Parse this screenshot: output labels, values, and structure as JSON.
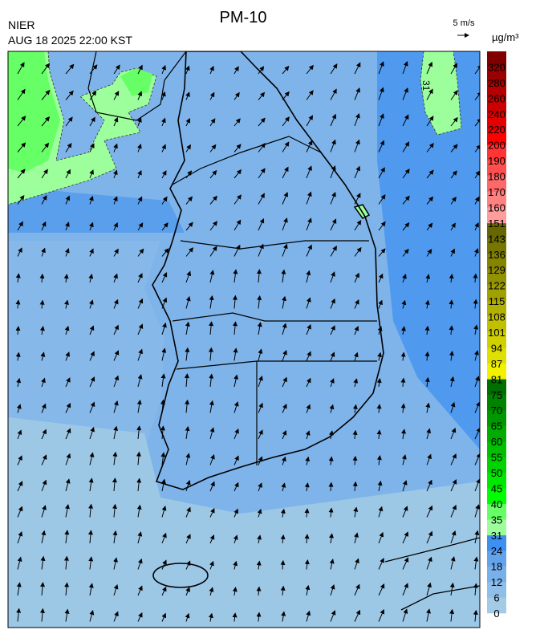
{
  "header": {
    "title": "PM-10",
    "agency": "NIER",
    "timestamp": "AUG 18 2025 22:00 KST",
    "wind_scale": "5 m/s"
  },
  "map": {
    "contour_label": "31"
  },
  "colorbar": {
    "unit": "µg/m³",
    "labels": [
      0,
      6,
      12,
      18,
      24,
      31,
      35,
      40,
      45,
      50,
      55,
      60,
      65,
      70,
      75,
      81,
      87,
      94,
      101,
      108,
      115,
      122,
      129,
      136,
      143,
      151,
      160,
      170,
      180,
      190,
      200,
      220,
      240,
      260,
      280,
      320
    ],
    "colors": [
      "#a3cbe6",
      "#8fbfe9",
      "#78b0ea",
      "#62a3eb",
      "#3d8ff0",
      "#9cff9c",
      "#66ff66",
      "#00ff00",
      "#00e800",
      "#00d400",
      "#00c000",
      "#00ac00",
      "#009800",
      "#008400",
      "#006e00",
      "#f2f200",
      "#e0e000",
      "#d0d000",
      "#c0c000",
      "#b0b000",
      "#a0a000",
      "#929200",
      "#848400",
      "#767600",
      "#686600",
      "#ff9c9c",
      "#ff8282",
      "#ff6868",
      "#ff4e4e",
      "#ff3434",
      "#ff0000",
      "#e40000",
      "#cc0000",
      "#b40000",
      "#9a0000",
      "#800000"
    ]
  }
}
